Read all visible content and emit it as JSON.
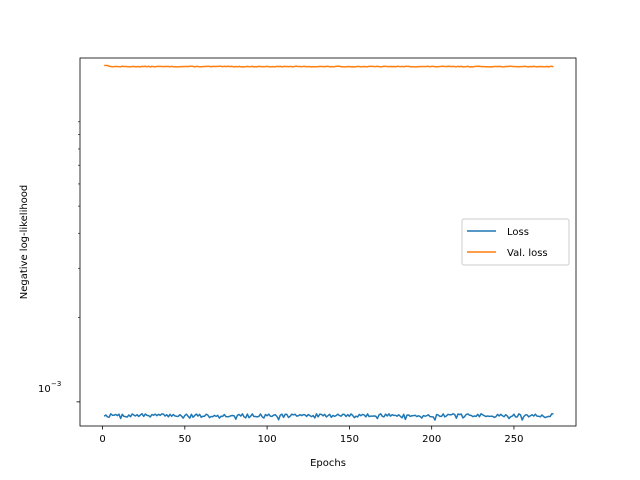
{
  "chart_data": {
    "type": "line",
    "title": "",
    "xlabel": "Epochs",
    "ylabel": "Negative log-likelihood",
    "y_scale": "log",
    "xlim": [
      -13.7,
      287.7
    ],
    "ylim": [
      0.00082,
      0.0169
    ],
    "x_ticks": [
      0,
      50,
      100,
      150,
      200,
      250
    ],
    "x_tick_labels": [
      "0",
      "50",
      "100",
      "150",
      "200",
      "250"
    ],
    "y_major_ticks": [
      0.001
    ],
    "y_major_tick_labels": [
      "10",
      "−3"
    ],
    "y_minor_ticks": [
      0.002,
      0.003,
      0.004,
      0.005,
      0.006,
      0.007,
      0.008,
      0.009,
      0.01
    ],
    "grid": false,
    "legend_position": "center-right",
    "series": [
      {
        "name": "Loss",
        "color": "#1f77b4",
        "x_range": [
          1,
          274
        ],
        "noise_seed": 7,
        "base": 0.000895,
        "jitter": 1.2e-05,
        "dip_prob": 0.12,
        "dip": 1.8e-05
      },
      {
        "name": "Val. loss",
        "color": "#ff7f0e",
        "x_range": [
          1,
          274
        ],
        "noise_seed": 13,
        "base": 0.01575,
        "start": 0.0159,
        "jitter": 4e-05,
        "dip_prob": 0,
        "dip": 0
      }
    ]
  }
}
